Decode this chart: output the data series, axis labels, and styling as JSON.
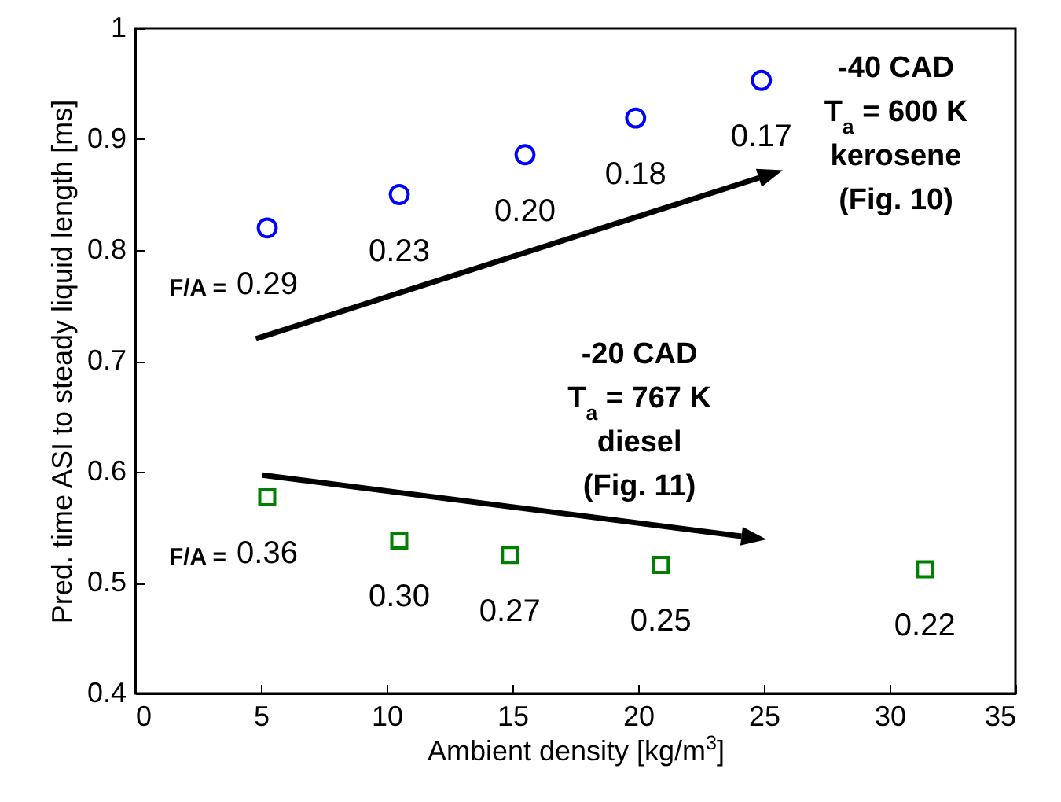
{
  "chart_data": {
    "type": "scatter",
    "xlabel": "Ambient density [kg/m$^{3}$]",
    "ylabel": "Pred. time ASI to steady liquid length [ms]",
    "xlim": [
      0,
      35
    ],
    "xticks": [
      0,
      5,
      10,
      15,
      20,
      25,
      30,
      35
    ],
    "ylim": [
      0.4,
      1
    ],
    "yticks": [
      0.4,
      0.5,
      0.6,
      0.7,
      0.8,
      0.9,
      1
    ],
    "grid": false,
    "series": [
      {
        "color": "#0000ff",
        "marker": "circle",
        "x": [
          5.25,
          10.5,
          15.5,
          19.9,
          24.9
        ],
        "values": [
          0.82,
          0.85,
          0.886,
          0.919,
          0.953
        ]
      },
      {
        "color": "#008000",
        "marker": "square",
        "x": [
          5.25,
          10.5,
          14.9,
          20.9,
          31.4
        ],
        "values": [
          0.577,
          0.538,
          0.525,
          0.516,
          0.512
        ]
      }
    ],
    "annotations": [
      {
        "text": "F/A =",
        "x": 5.25,
        "y": 0.82
      },
      {
        "text": "0.29",
        "x": 5.25,
        "y": 0.82
      },
      {
        "text": "0.23",
        "x": 10.5,
        "y": 0.85
      },
      {
        "text": "0.20",
        "x": 15.5,
        "y": 0.886
      },
      {
        "text": "0.18",
        "x": 19.9,
        "y": 0.919
      },
      {
        "text": "0.17",
        "x": 24.9,
        "y": 0.953
      },
      {
        "text": "F/A =",
        "x": 5.25,
        "y": 0.577
      },
      {
        "text": "0.36",
        "x": 5.25,
        "y": 0.577
      },
      {
        "text": "0.30",
        "x": 10.5,
        "y": 0.538
      },
      {
        "text": "0.27",
        "x": 14.9,
        "y": 0.525
      },
      {
        "text": "0.25",
        "x": 20.9,
        "y": 0.516
      },
      {
        "text": "0.22",
        "x": 31.4,
        "y": 0.512
      },
      "-40 CAD\nT$_{a}$ = 600 K\nkerosene\n(Fig. 10)",
      "-20 CAD\nT$_{a}$ = 767 K\ndiesel\n(Fig. 11)"
    ]
  }
}
